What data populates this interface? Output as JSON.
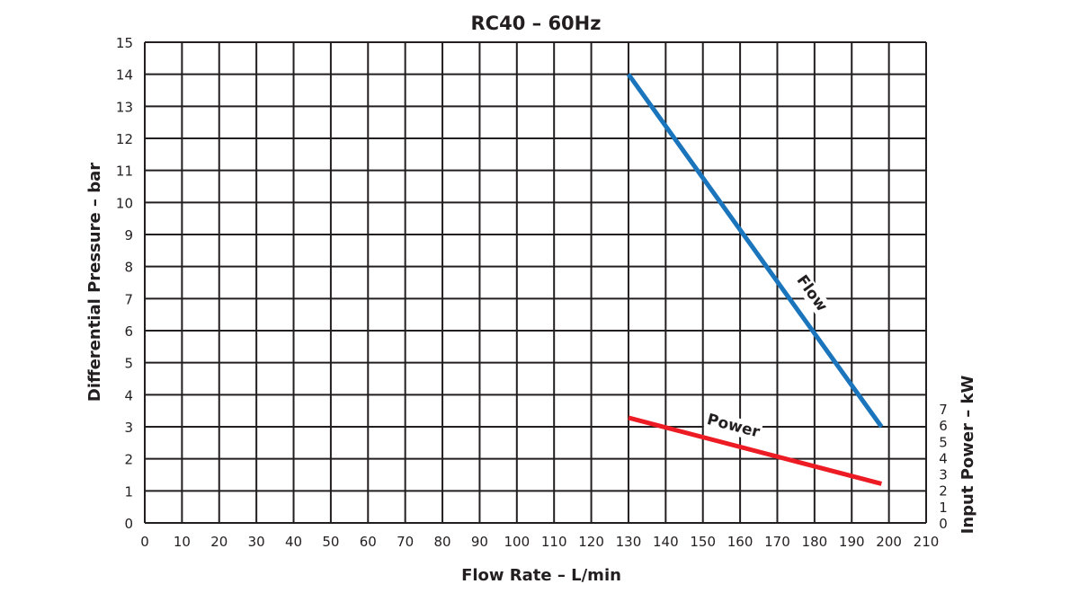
{
  "chart_data": {
    "type": "line",
    "title": "RC40 – 60Hz",
    "xlabel": "Flow Rate – L/min",
    "ylabel": "Differential Pressure – bar",
    "y2label": "Input Power – kW",
    "xlim": [
      0,
      210
    ],
    "ylim": [
      0,
      15
    ],
    "y2lim": [
      0,
      7
    ],
    "xticks": [
      0,
      10,
      20,
      30,
      40,
      50,
      60,
      70,
      80,
      90,
      100,
      110,
      120,
      130,
      140,
      150,
      160,
      170,
      180,
      190,
      200,
      210
    ],
    "yticks": [
      0,
      1,
      2,
      3,
      4,
      5,
      6,
      7,
      8,
      9,
      10,
      11,
      12,
      13,
      14,
      15
    ],
    "y2ticks": [
      0,
      1,
      2,
      3,
      4,
      5,
      6,
      7
    ],
    "grid": true,
    "series": [
      {
        "name": "Flow",
        "axis": "left",
        "color": "#1a75bc",
        "x": [
          130,
          198
        ],
        "y": [
          14,
          3
        ]
      },
      {
        "name": "Power",
        "axis": "right",
        "color": "#ed1c24",
        "x": [
          130,
          198
        ],
        "y": [
          6.45,
          2.4
        ]
      }
    ]
  }
}
